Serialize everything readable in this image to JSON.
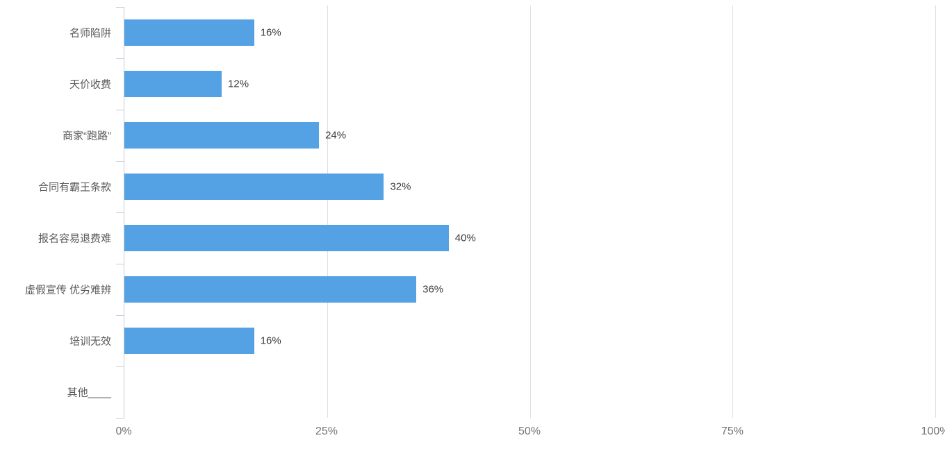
{
  "chart_data": {
    "type": "bar",
    "orientation": "horizontal",
    "title": "",
    "xlabel": "",
    "ylabel": "",
    "xlim": [
      0,
      100
    ],
    "grid": true,
    "legend": "none",
    "bar_color": "#54a1e4",
    "categories": [
      "名师陷阱",
      "天价收费",
      "商家“跑路”",
      "合同有霸王条款",
      "报名容易退费难",
      "虚假宣传 优劣难辨",
      "培训无效",
      "其他____"
    ],
    "values": [
      16,
      12,
      24,
      32,
      40,
      36,
      16,
      0
    ],
    "value_labels": [
      "16%",
      "12%",
      "24%",
      "32%",
      "40%",
      "36%",
      "16%",
      ""
    ],
    "x_ticks": [
      {
        "value": 0,
        "label": "0%"
      },
      {
        "value": 25,
        "label": "25%"
      },
      {
        "value": 50,
        "label": "50%"
      },
      {
        "value": 75,
        "label": "75%"
      },
      {
        "value": 100,
        "label": "100%"
      }
    ]
  },
  "colors": {
    "background": "#ffffff",
    "bar": "#54a1e4",
    "gridline": "#dcdfe3",
    "axis_line": "#c6cdd6",
    "category_label": "#595959",
    "value_label": "#3c3c3c",
    "x_tick_label": "#737373"
  }
}
